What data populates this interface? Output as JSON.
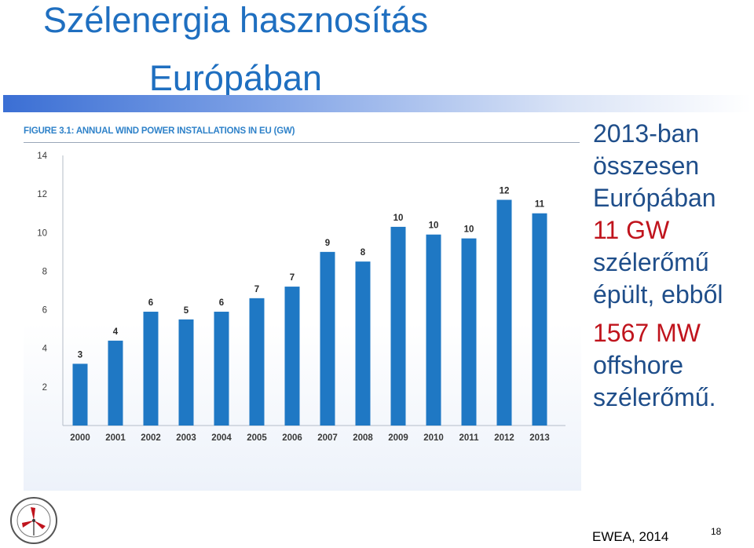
{
  "slide": {
    "title_line1": "Szélenergia hasznosítás",
    "title_line2": "Európában",
    "source": "EWEA, 2014",
    "page_number": "18"
  },
  "figure": {
    "title": "FIGURE 3.1: ANNUAL WIND POWER INSTALLATIONS IN EU (GW)"
  },
  "side_text": {
    "lines_blue": [
      "2013-ban",
      "összesen",
      "Európában"
    ],
    "highlight1": "11 GW",
    "lines_blue2": [
      "szélerőmű",
      "épült, ebből"
    ],
    "highlight2": "1567 MW",
    "lines_blue3": [
      "offshore",
      "szélerőmű."
    ]
  },
  "colors": {
    "title": "#1f6fc0",
    "bar": "#1f78c4",
    "text_blue": "#1f4e8a",
    "text_red": "#c0141d"
  },
  "chart_data": {
    "type": "bar",
    "title": "FIGURE 3.1: ANNUAL WIND POWER INSTALLATIONS IN EU (GW)",
    "categories": [
      "2000",
      "2001",
      "2002",
      "2003",
      "2004",
      "2005",
      "2006",
      "2007",
      "2008",
      "2009",
      "2010",
      "2011",
      "2012",
      "2013"
    ],
    "values": [
      3.2,
      4.4,
      5.9,
      5.5,
      5.9,
      6.6,
      7.2,
      9.0,
      8.5,
      10.3,
      9.9,
      9.7,
      11.7,
      11.0
    ],
    "data_labels": [
      "3",
      "4",
      "6",
      "5",
      "6",
      "7",
      "7",
      "9",
      "8",
      "10",
      "10",
      "10",
      "12",
      "11"
    ],
    "yticks": [
      2,
      4,
      6,
      8,
      10,
      12,
      14
    ],
    "ylim": [
      0,
      14
    ],
    "grid": false,
    "legend": "none"
  }
}
